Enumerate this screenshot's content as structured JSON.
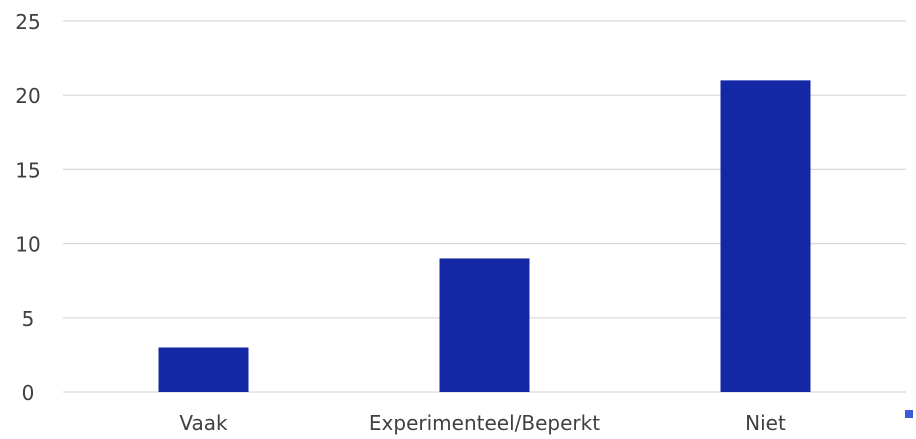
{
  "chart_data": {
    "type": "bar",
    "categories": [
      "Vaak",
      "Experimenteel/Beperkt",
      "Niet"
    ],
    "values": [
      3,
      9,
      21
    ],
    "ylim": [
      0,
      25
    ],
    "yticks": [
      0,
      5,
      10,
      15,
      20,
      25
    ],
    "title": "",
    "xlabel": "",
    "ylabel": "",
    "grid": true,
    "legend": "bottom-right",
    "bar_color": "#1428A6",
    "legend_marker_color": "#3B5BDB",
    "gridline_color": "#D9D9D9",
    "label_color": "#404040"
  }
}
